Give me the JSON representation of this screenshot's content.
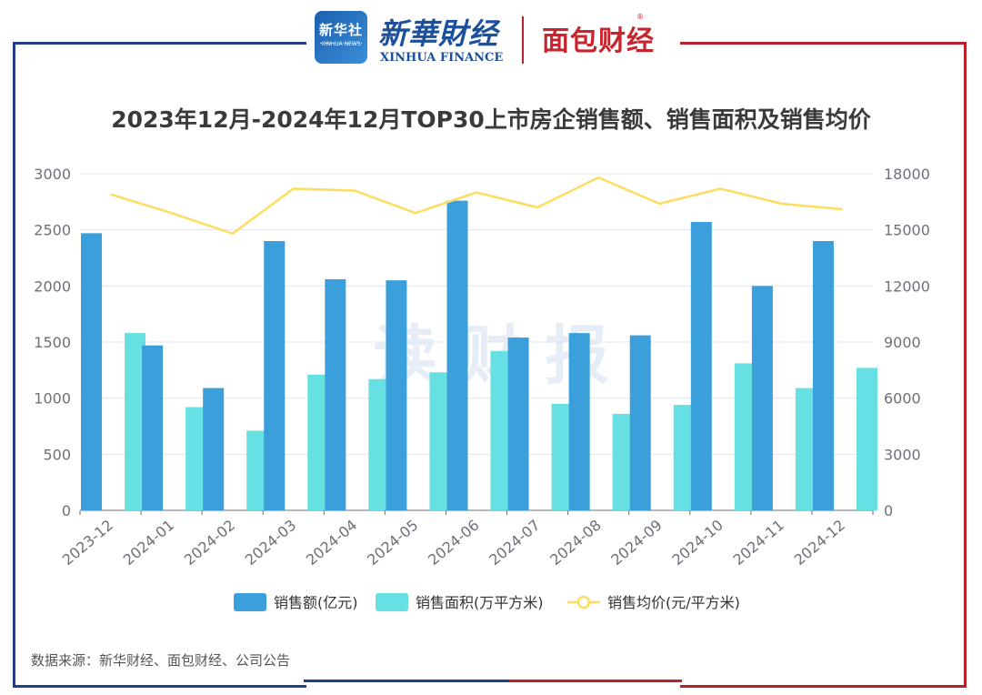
{
  "header": {
    "xinhua_logo_cn": "新华社",
    "xinhua_logo_en": "XINHUA NEWS",
    "brand_cn": "新華財经",
    "brand_en": "XINHUA FINANCE",
    "mianbao": "面包财经",
    "reg_mark": "®"
  },
  "watermark": "读 财 报",
  "source": "数据来源：新华财经、面包财经、公司公告",
  "colors": {
    "sales": "#3a9fdb",
    "area": "#67e0e3",
    "price": "#fddd60",
    "frame_blue": "#1f3f86",
    "frame_red": "#b8202a"
  },
  "chart_data": {
    "type": "bar",
    "title": "2023年12月-2024年12月TOP30上市房企销售额、销售面积及销售均价",
    "categories": [
      "2023-12",
      "2024-01",
      "2024-02",
      "2024-03",
      "2024-04",
      "2024-05",
      "2024-06",
      "2024-07",
      "2024-08",
      "2024-09",
      "2024-10",
      "2024-11",
      "2024-12"
    ],
    "series": [
      {
        "name": "销售额(亿元)",
        "type": "bar",
        "axis": "left",
        "values": [
          2470,
          1470,
          1090,
          2400,
          2060,
          2050,
          2760,
          1540,
          1580,
          1560,
          2570,
          2000,
          2400
        ]
      },
      {
        "name": "销售面积(万平方米)",
        "type": "bar",
        "axis": "left",
        "values": [
          1580,
          920,
          710,
          1210,
          1170,
          1230,
          1420,
          950,
          860,
          940,
          1310,
          1090,
          1270
        ]
      },
      {
        "name": "销售均价(元/平方米)",
        "type": "line",
        "axis": "right",
        "values": [
          16900,
          15900,
          14800,
          17200,
          17100,
          15900,
          17000,
          16200,
          17800,
          16400,
          17200,
          16400,
          16100
        ]
      }
    ],
    "y_left": {
      "min": 0,
      "max": 3000,
      "ticks": [
        "0",
        "500",
        "1000",
        "1500",
        "2000",
        "2500",
        "3000"
      ]
    },
    "y_right": {
      "min": 0,
      "max": 18000,
      "ticks": [
        "0",
        "3000",
        "6000",
        "9000",
        "12000",
        "15000",
        "18000"
      ]
    },
    "grid": true,
    "legend_position": "bottom"
  }
}
